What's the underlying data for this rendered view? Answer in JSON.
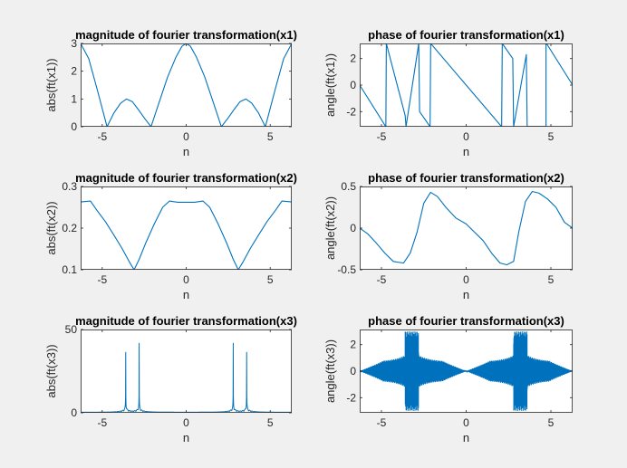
{
  "figure": {
    "background": "#f0f0f0",
    "axes_background": "#ffffff",
    "line_color": "#0072bd"
  },
  "chart_data": [
    {
      "type": "line",
      "title": "magnitude of fourier transformation(x1)",
      "xlabel": "n",
      "ylabel": "abs(ft(x1))",
      "xlim": [
        -6.283,
        6.283
      ],
      "ylim": [
        0,
        3
      ],
      "xticks": [
        -5,
        0,
        5
      ],
      "yticks": [
        0,
        1,
        2,
        3
      ],
      "grid": false,
      "series": [
        {
          "values_note": "",
          "x": [
            -6.283,
            -5.8,
            -5.3,
            -4.712,
            -4.3,
            -3.9,
            -3.55,
            -3.2,
            -2.85,
            -2.5,
            -2.094,
            -1.6,
            -1.1,
            -0.6,
            -0.25,
            0,
            0.25,
            0.6,
            1.1,
            1.6,
            2.094,
            2.5,
            2.85,
            3.2,
            3.55,
            3.9,
            4.3,
            4.712,
            5.3,
            5.8,
            6.283
          ],
          "y": [
            3,
            2.45,
            1.35,
            0,
            0.5,
            0.85,
            1.0,
            0.9,
            0.62,
            0.32,
            0,
            0.9,
            1.8,
            2.52,
            2.9,
            3,
            2.9,
            2.52,
            1.8,
            0.9,
            0,
            0.32,
            0.62,
            0.9,
            1.0,
            0.85,
            0.5,
            0,
            1.35,
            2.45,
            3
          ]
        }
      ]
    },
    {
      "type": "line",
      "title": "phase of fourier transformation(x1)",
      "xlabel": "n",
      "ylabel": "angle(ft(x1))",
      "xlim": [
        -6.283,
        6.283
      ],
      "ylim": [
        -3.14,
        3.14
      ],
      "xticks": [
        -5,
        0,
        5
      ],
      "yticks": [
        -2,
        0,
        2
      ],
      "grid": false,
      "series": [
        {
          "x": [
            -6.283,
            -4.74,
            -4.74,
            -4.712,
            -4.712,
            -3.6,
            -3.6,
            -3.55,
            -3.55,
            -2.8,
            -2.8,
            -2.75,
            -2.75,
            -2.13,
            -2.13,
            -2.094,
            -2.094,
            2.094,
            2.094,
            2.13,
            2.13,
            2.75,
            2.75,
            2.8,
            2.8,
            3.55,
            3.55,
            3.6,
            3.6,
            4.712,
            4.712,
            4.74,
            4.74,
            6.283
          ],
          "y": [
            0,
            -3.14,
            -3.14,
            3.14,
            3.14,
            -2.3,
            -2.3,
            -3.14,
            -3.14,
            3.14,
            3.14,
            -2.0,
            -2.0,
            -3.14,
            -3.14,
            3.14,
            3.14,
            -3.14,
            -3.14,
            3.14,
            3.14,
            2.0,
            2.0,
            -3.14,
            -3.14,
            2.3,
            2.3,
            -3.14,
            -3.14,
            -3.14,
            3.14,
            3.14,
            3.14,
            0
          ]
        }
      ]
    },
    {
      "type": "line",
      "title": "magnitude of fourier transformation(x2)",
      "xlabel": "n",
      "ylabel": "abs(ft(x2))",
      "xlim": [
        -6.283,
        6.283
      ],
      "ylim": [
        0.1,
        0.3
      ],
      "xticks": [
        -5,
        0,
        5
      ],
      "yticks": [
        0.1,
        0.2,
        0.3
      ],
      "grid": false,
      "series": [
        {
          "x": [
            -6.283,
            -5.7,
            -5.3,
            -4.8,
            -4.3,
            -3.8,
            -3.4,
            -3.1,
            -2.8,
            -2.4,
            -1.9,
            -1.4,
            -1.0,
            -0.5,
            0,
            0.5,
            1.0,
            1.4,
            1.9,
            2.4,
            2.8,
            3.1,
            3.4,
            3.8,
            4.3,
            4.8,
            5.3,
            5.7,
            6.283
          ],
          "y": [
            0.263,
            0.265,
            0.242,
            0.215,
            0.183,
            0.15,
            0.12,
            0.1,
            0.125,
            0.165,
            0.21,
            0.25,
            0.265,
            0.262,
            0.262,
            0.262,
            0.265,
            0.25,
            0.21,
            0.165,
            0.125,
            0.1,
            0.12,
            0.15,
            0.183,
            0.215,
            0.242,
            0.265,
            0.263
          ]
        }
      ]
    },
    {
      "type": "line",
      "title": "phase of fourier transformation(x2)",
      "xlabel": "n",
      "ylabel": "angle(ft(x2))",
      "xlim": [
        -6.283,
        6.283
      ],
      "ylim": [
        -0.5,
        0.5
      ],
      "xticks": [
        -5,
        0,
        5
      ],
      "yticks": [
        -0.5,
        0,
        0.5
      ],
      "grid": false,
      "series": [
        {
          "x": [
            -6.283,
            -5.8,
            -5.3,
            -4.8,
            -4.3,
            -3.7,
            -3.3,
            -2.9,
            -2.5,
            -2.1,
            -1.7,
            -1.2,
            -0.6,
            0,
            0.5,
            1.0,
            1.5,
            2.0,
            2.4,
            2.8,
            3.1,
            3.5,
            3.9,
            4.3,
            4.8,
            5.3,
            5.8,
            6.283
          ],
          "y": [
            0,
            -0.07,
            -0.18,
            -0.3,
            -0.4,
            -0.42,
            -0.3,
            -0.05,
            0.3,
            0.43,
            0.38,
            0.25,
            0.12,
            0.05,
            -0.05,
            -0.15,
            -0.3,
            -0.42,
            -0.44,
            -0.4,
            -0.05,
            0.32,
            0.44,
            0.42,
            0.35,
            0.25,
            0.07,
            0
          ]
        }
      ]
    },
    {
      "type": "line",
      "title": "magnitude of fourier transformation(x3)",
      "xlabel": "n",
      "ylabel": "abs(ft(x3))",
      "xlim": [
        -6.283,
        6.283
      ],
      "ylim": [
        0,
        50
      ],
      "xticks": [
        -5,
        0,
        5
      ],
      "yticks": [
        0,
        50
      ],
      "grid": false,
      "series": [
        {
          "peaks": [
            -3.6,
            -2.8,
            2.8,
            3.6
          ],
          "peak_value": 50,
          "floor_value": 1
        }
      ]
    },
    {
      "type": "line",
      "title": "phase of fourier transformation(x3)",
      "xlabel": "n",
      "ylabel": "angle(ft(x3))",
      "xlim": [
        -6.283,
        6.283
      ],
      "ylim": [
        -3.14,
        3.14
      ],
      "xticks": [
        -5,
        0,
        5
      ],
      "yticks": [
        -2,
        0,
        2
      ],
      "grid": false,
      "series": [
        {
          "dense_oscillation": true,
          "full_bands": [
            [
              -3.6,
              -2.8
            ],
            [
              2.8,
              3.6
            ]
          ],
          "envelope_max": 1.2
        }
      ]
    }
  ]
}
